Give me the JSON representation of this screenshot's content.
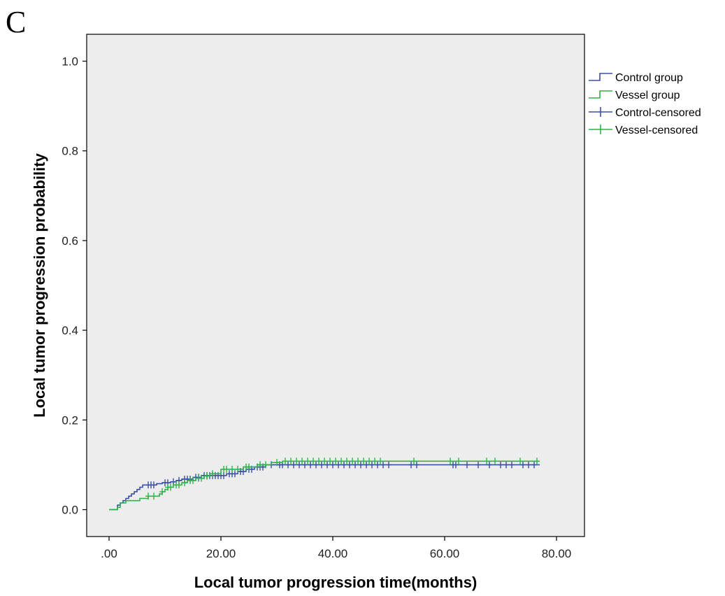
{
  "panel_label": "C",
  "colors": {
    "control": "#3b4ea8",
    "vessel": "#2fb34a",
    "plot_background": "#ededed",
    "axis": "#000000"
  },
  "chart_data": {
    "type": "line",
    "subtype": "kaplan-meier-step",
    "title": "",
    "xlabel": "Local tumor progression time(months)",
    "ylabel": "Local tumor progression probability",
    "xlim": [
      -4,
      85
    ],
    "ylim": [
      -0.06,
      1.06
    ],
    "x_ticks": [
      0,
      20,
      40,
      60,
      80
    ],
    "x_tick_labels": [
      ".00",
      "20.00",
      "40.00",
      "60.00",
      "80.00"
    ],
    "y_ticks": [
      0,
      0.2,
      0.4,
      0.6,
      0.8,
      1.0
    ],
    "y_tick_labels": [
      "0.0",
      "0.2",
      "0.4",
      "0.6",
      "0.8",
      "1.0"
    ],
    "grid": false,
    "legend_position": "right",
    "legend": [
      {
        "label": "Control group",
        "kind": "step",
        "color_key": "control"
      },
      {
        "label": "Vessel group",
        "kind": "step",
        "color_key": "vessel"
      },
      {
        "label": "Control-censored",
        "kind": "censor",
        "color_key": "control"
      },
      {
        "label": "Vessel-censored",
        "kind": "censor",
        "color_key": "vessel"
      }
    ],
    "series": [
      {
        "name": "Control group",
        "color_key": "control",
        "steps": [
          [
            0,
            0
          ],
          [
            1.5,
            0.01
          ],
          [
            2,
            0.015
          ],
          [
            2.5,
            0.02
          ],
          [
            3,
            0.025
          ],
          [
            3.5,
            0.03
          ],
          [
            4,
            0.035
          ],
          [
            4.5,
            0.04
          ],
          [
            5,
            0.045
          ],
          [
            5.5,
            0.05
          ],
          [
            6,
            0.055
          ],
          [
            8.5,
            0.058
          ],
          [
            9.5,
            0.06
          ],
          [
            11,
            0.062
          ],
          [
            12,
            0.065
          ],
          [
            13,
            0.068
          ],
          [
            15,
            0.072
          ],
          [
            16.5,
            0.076
          ],
          [
            21,
            0.08
          ],
          [
            23,
            0.085
          ],
          [
            24.5,
            0.09
          ],
          [
            26,
            0.095
          ],
          [
            28,
            0.1
          ],
          [
            30,
            0.1
          ],
          [
            77,
            0.1
          ]
        ],
        "censored_x": [
          7,
          7.5,
          8,
          10,
          10.5,
          11.5,
          12.5,
          13.5,
          14,
          14.5,
          15.5,
          16,
          17,
          17.5,
          18,
          18.5,
          19,
          19.5,
          20,
          20.5,
          21.5,
          22,
          22.5,
          23.5,
          24,
          25,
          25.5,
          26.5,
          27,
          27.5,
          29,
          30.5,
          31,
          32,
          33,
          34,
          35,
          36,
          37,
          38,
          39,
          40,
          41,
          42,
          43,
          44,
          45,
          46,
          47,
          48,
          49,
          50,
          54,
          55,
          61.5,
          62,
          64,
          66,
          68,
          70,
          71,
          72,
          74,
          75,
          76
        ]
      },
      {
        "name": "Vessel group",
        "color_key": "vessel",
        "steps": [
          [
            0,
            0
          ],
          [
            1.5,
            0.005
          ],
          [
            2,
            0.015
          ],
          [
            3,
            0.02
          ],
          [
            5.5,
            0.025
          ],
          [
            7,
            0.03
          ],
          [
            9,
            0.035
          ],
          [
            9.5,
            0.04
          ],
          [
            10,
            0.045
          ],
          [
            10.5,
            0.05
          ],
          [
            11.5,
            0.055
          ],
          [
            13,
            0.06
          ],
          [
            14,
            0.065
          ],
          [
            15.5,
            0.07
          ],
          [
            17,
            0.075
          ],
          [
            18,
            0.08
          ],
          [
            20,
            0.09
          ],
          [
            24,
            0.095
          ],
          [
            26.5,
            0.1
          ],
          [
            29,
            0.105
          ],
          [
            31,
            0.108
          ],
          [
            77,
            0.108
          ]
        ],
        "censored_x": [
          7,
          8,
          9.5,
          10.5,
          11,
          12,
          12.5,
          13.5,
          14.5,
          15,
          16,
          16.5,
          17.5,
          18.5,
          20.5,
          21,
          22,
          23,
          24.5,
          25,
          27,
          28,
          30,
          31.5,
          32.5,
          33.5,
          34.5,
          35.5,
          36.5,
          37.5,
          38.5,
          39.5,
          40.5,
          41.5,
          42.5,
          43.5,
          44.5,
          45.5,
          46.5,
          47.5,
          48.5,
          54.5,
          61,
          62.5,
          67.5,
          69,
          73.5,
          76.5
        ]
      }
    ]
  }
}
